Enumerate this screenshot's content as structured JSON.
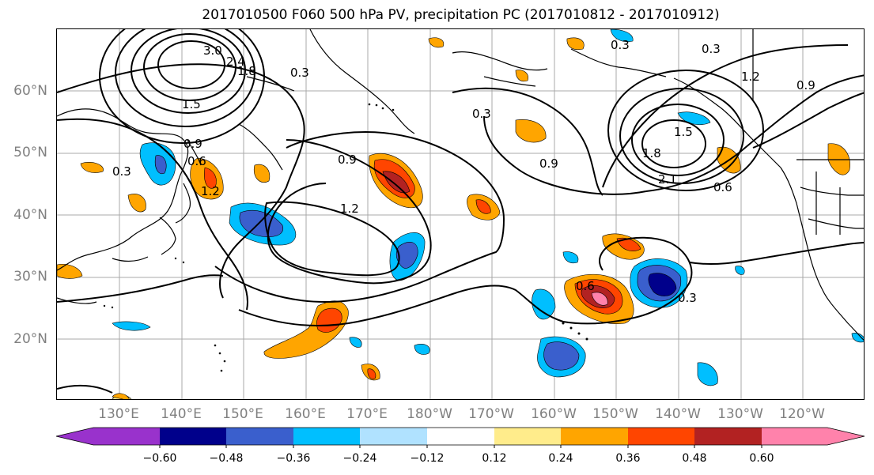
{
  "title": "2017010500 F060 500 hPa PV, precipitation PC (2017010812 - 2017010912)",
  "lat_labels": [
    "60°N",
    "50°N",
    "40°N",
    "30°N",
    "20°N"
  ],
  "lon_labels": [
    "130°E",
    "140°E",
    "150°E",
    "160°E",
    "170°E",
    "180°W",
    "170°W",
    "160°W",
    "150°W",
    "140°W",
    "130°W",
    "120°W"
  ],
  "contour_labels": [
    "3.0",
    "2.4",
    "1.8",
    "1.5",
    "0.9",
    "0.6",
    "0.3",
    "1.2",
    "0.3",
    "0.9",
    "1.2",
    "0.3",
    "0.9",
    "1.8",
    "1.5",
    "2.1",
    "0.6",
    "0.6",
    "0.3",
    "0.3",
    "0.3",
    "1.2",
    "0.9"
  ],
  "colorbar": {
    "ticks": [
      "−0.60",
      "−0.48",
      "−0.36",
      "−0.24",
      "−0.12",
      "0.12",
      "0.24",
      "0.36",
      "0.48",
      "0.60"
    ],
    "colors": [
      "#9932cc",
      "#00008b",
      "#3a5fcd",
      "#00bfff",
      "#b0e2ff",
      "#ffffff",
      "#ffec8b",
      "#ffa500",
      "#ff4500",
      "#b22222",
      "#ff82ab"
    ]
  },
  "map": {
    "grid": true,
    "projection": "cylindrical",
    "lat_range": [
      10,
      70
    ],
    "lon_range": [
      120,
      250
    ],
    "contour_color": "#000000",
    "coastline_color": "#000000"
  }
}
